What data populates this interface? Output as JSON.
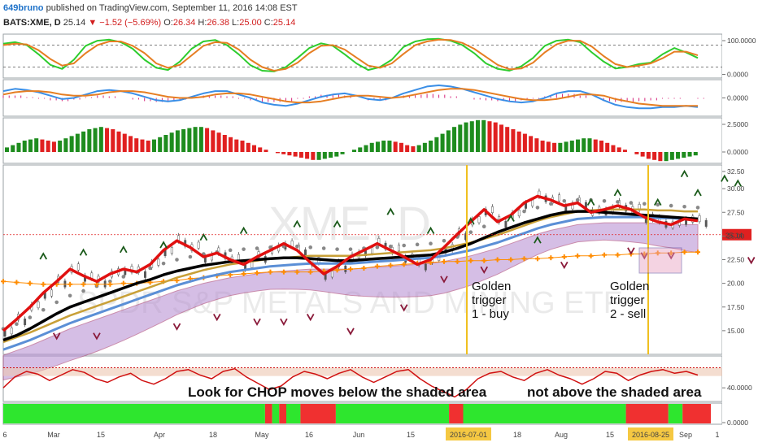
{
  "header": {
    "author": "649bruno",
    "published_text": "published on TradingView.com, September 11, 2016 14:08 EST",
    "symbol": "BATS:XME, D",
    "price": "25.14",
    "change": "−1.52 (−5.69%)",
    "open_label": "O:",
    "open": "26.34",
    "high_label": "H:",
    "high": "26.38",
    "low_label": "L:",
    "low": "25.00",
    "close_label": "C:",
    "close": "25.14"
  },
  "watermark": {
    "symbol": "XME, D",
    "name": "SPDR S&P METALS AND MINING ETF"
  },
  "chart_data": [
    {
      "type": "line",
      "pane": "stochastic",
      "yticks": [
        "100.0000",
        "0.0000"
      ],
      "ylim": [
        -10,
        110
      ],
      "guides": [
        80,
        20
      ],
      "series": [
        {
          "color": "#2ecc2e",
          "values": [
            84,
            88,
            80,
            55,
            26,
            15,
            40,
            78,
            92,
            95,
            88,
            70,
            40,
            18,
            12,
            35,
            70,
            90,
            94,
            80,
            55,
            25,
            10,
            8,
            20,
            45,
            72,
            85,
            78,
            55,
            30,
            12,
            20,
            40,
            75,
            90,
            96,
            97,
            92,
            80,
            58,
            30,
            15,
            10,
            22,
            45,
            78,
            92,
            95,
            88,
            60,
            35,
            16,
            20,
            28,
            32,
            55,
            72,
            60,
            45
          ]
        },
        {
          "color": "#e67e22",
          "values": [
            80,
            84,
            82,
            66,
            42,
            24,
            30,
            58,
            80,
            90,
            90,
            78,
            58,
            30,
            18,
            26,
            52,
            78,
            88,
            86,
            68,
            40,
            20,
            10,
            15,
            32,
            58,
            78,
            80,
            68,
            46,
            24,
            18,
            30,
            56,
            80,
            90,
            95,
            94,
            86,
            70,
            48,
            26,
            14,
            16,
            32,
            60,
            82,
            92,
            92,
            76,
            50,
            28,
            20,
            24,
            30,
            44,
            62,
            62,
            52
          ]
        }
      ]
    },
    {
      "type": "line",
      "pane": "macd",
      "yticks": [
        "0.0000"
      ],
      "ylim": [
        -1.6,
        1.6
      ],
      "series": [
        {
          "color": "#3a8ee6",
          "values": [
            0.6,
            0.8,
            0.7,
            0.5,
            0.2,
            -0.1,
            0.0,
            0.3,
            0.6,
            0.7,
            0.6,
            0.4,
            0.1,
            -0.2,
            -0.3,
            -0.2,
            0.1,
            0.4,
            0.6,
            0.6,
            0.3,
            0.0,
            -0.4,
            -0.6,
            -0.7,
            -0.5,
            -0.2,
            0.1,
            0.3,
            0.4,
            0.2,
            -0.1,
            -0.2,
            0.0,
            0.4,
            0.7,
            1.0,
            1.1,
            1.0,
            0.8,
            0.5,
            0.2,
            -0.1,
            -0.3,
            -0.4,
            -0.3,
            0.0,
            0.4,
            0.6,
            0.6,
            0.3,
            -0.2,
            -0.6,
            -0.8,
            -0.9,
            -0.9,
            -0.8,
            -0.8,
            -0.7,
            -0.8
          ]
        },
        {
          "color": "#e67e22",
          "values": [
            0.3,
            0.5,
            0.6,
            0.6,
            0.5,
            0.3,
            0.2,
            0.2,
            0.3,
            0.5,
            0.6,
            0.6,
            0.5,
            0.3,
            0.1,
            0.0,
            0.0,
            0.1,
            0.3,
            0.4,
            0.4,
            0.3,
            0.1,
            -0.1,
            -0.3,
            -0.4,
            -0.4,
            -0.3,
            -0.1,
            0.1,
            0.2,
            0.2,
            0.1,
            0.0,
            0.1,
            0.3,
            0.5,
            0.7,
            0.8,
            0.8,
            0.7,
            0.5,
            0.3,
            0.1,
            -0.1,
            -0.2,
            -0.2,
            -0.1,
            0.1,
            0.3,
            0.3,
            0.2,
            -0.1,
            -0.3,
            -0.5,
            -0.6,
            -0.7,
            -0.7,
            -0.7,
            -0.7
          ]
        }
      ]
    },
    {
      "type": "bar",
      "pane": "momentum-histogram",
      "yticks": [
        "2.5000",
        "0.0000"
      ],
      "ylim": [
        -1.0,
        3.0
      ],
      "colors": {
        "up": "#1e8c1e",
        "down": "#e02020"
      },
      "values": [
        0.4,
        0.6,
        0.8,
        1.0,
        1.1,
        1.2,
        1.1,
        1.0,
        0.9,
        1.0,
        1.2,
        1.4,
        1.6,
        1.8,
        2.0,
        2.1,
        2.2,
        2.1,
        2.0,
        1.8,
        1.6,
        1.4,
        1.2,
        1.1,
        1.0,
        1.1,
        1.3,
        1.5,
        1.7,
        1.9,
        2.0,
        2.1,
        2.2,
        2.2,
        2.1,
        1.9,
        1.7,
        1.5,
        1.3,
        1.1,
        1.0,
        0.8,
        0.6,
        0.4,
        0.2,
        0.0,
        -0.1,
        -0.2,
        -0.3,
        -0.4,
        -0.5,
        -0.6,
        -0.7,
        -0.7,
        -0.6,
        -0.5,
        -0.4,
        -0.2,
        0.0,
        0.2,
        0.4,
        0.6,
        0.8,
        0.9,
        1.0,
        1.0,
        0.9,
        0.8,
        0.6,
        0.5,
        0.6,
        0.8,
        1.0,
        1.3,
        1.6,
        1.9,
        2.2,
        2.4,
        2.6,
        2.7,
        2.8,
        2.8,
        2.7,
        2.6,
        2.4,
        2.2,
        2.0,
        1.8,
        1.6,
        1.4,
        1.2,
        1.0,
        0.9,
        0.8,
        0.8,
        0.9,
        1.0,
        1.1,
        1.2,
        1.2,
        1.1,
        1.0,
        0.8,
        0.6,
        0.4,
        0.2,
        0.0,
        -0.2,
        -0.4,
        -0.6,
        -0.7,
        -0.8,
        -0.8,
        -0.7,
        -0.6,
        -0.5,
        -0.4,
        -0.3
      ]
    },
    {
      "type": "line",
      "pane": "price",
      "yticks": [
        "32.50",
        "30.00",
        "27.50",
        "25.00",
        "22.50",
        "20.00",
        "17.50",
        "15.00"
      ],
      "ylim": [
        12.5,
        32.5
      ],
      "last_price": "25.14",
      "series": [
        {
          "name": "",
          "color": "#e01010",
          "values": [
            15.0,
            16.2,
            17.5,
            19.0,
            20.2,
            21.5,
            20.8,
            20.2,
            21.0,
            21.5,
            21.2,
            22.0,
            23.5,
            24.5,
            23.8,
            22.8,
            23.2,
            22.5,
            22.0,
            22.8,
            23.5,
            24.2,
            23.5,
            22.2,
            21.0,
            21.8,
            22.8,
            23.5,
            24.2,
            23.5,
            22.8,
            22.0,
            22.5,
            23.8,
            25.2,
            26.5,
            27.8,
            26.5,
            27.2,
            28.5,
            29.2,
            28.8,
            28.2,
            28.5,
            27.5,
            27.8,
            28.2,
            27.8,
            27.0,
            26.5,
            26.2,
            26.8,
            26.6
          ]
        },
        {
          "name": "",
          "color": "#000000",
          "values": [
            14.0,
            14.5,
            15.2,
            16.0,
            16.8,
            17.5,
            18.0,
            18.5,
            19.0,
            19.5,
            20.0,
            20.4,
            20.9,
            21.3,
            21.6,
            21.9,
            22.1,
            22.3,
            22.4,
            22.5,
            22.6,
            22.7,
            22.7,
            22.6,
            22.5,
            22.4,
            22.4,
            22.5,
            22.6,
            22.7,
            22.8,
            22.9,
            23.0,
            23.3,
            23.7,
            24.2,
            24.8,
            25.4,
            25.9,
            26.4,
            26.8,
            27.2,
            27.5,
            27.6,
            27.6,
            27.5,
            27.4,
            27.3,
            27.2,
            27.1,
            27.0,
            26.9,
            26.8
          ]
        },
        {
          "name": "",
          "color": "#5b8fd6",
          "values": [
            13.0,
            13.5,
            14.0,
            14.6,
            15.2,
            15.8,
            16.3,
            16.8,
            17.3,
            17.8,
            18.3,
            18.8,
            19.3,
            19.8,
            20.2,
            20.6,
            20.9,
            21.2,
            21.4,
            21.6,
            21.8,
            21.9,
            22.0,
            22.1,
            22.1,
            22.1,
            22.1,
            22.2,
            22.3,
            22.4,
            22.5,
            22.6,
            22.7,
            22.9,
            23.2,
            23.5,
            23.9,
            24.3,
            24.8,
            25.3,
            25.8,
            26.2,
            26.5,
            26.8,
            26.9,
            27.0,
            27.0,
            27.0,
            27.0,
            26.9,
            26.9,
            26.8,
            26.8
          ]
        },
        {
          "name": "",
          "color": "#ff8c00",
          "values": [
            20.2,
            20.1,
            20.0,
            19.9,
            19.9,
            19.9,
            19.9,
            19.9,
            19.9,
            20.0,
            20.0,
            20.1,
            20.2,
            20.3,
            20.5,
            20.6,
            20.8,
            20.9,
            21.0,
            21.1,
            21.2,
            21.2,
            21.2,
            21.2,
            21.3,
            21.4,
            21.5,
            21.6,
            21.8,
            21.9,
            22.0,
            22.1,
            22.2,
            22.3,
            22.3,
            22.4,
            22.4,
            22.5,
            22.5,
            22.6,
            22.6,
            22.7,
            22.8,
            22.9,
            22.9,
            23.0,
            23.0,
            23.1,
            23.1,
            23.2,
            23.2,
            23.3,
            23.3
          ]
        }
      ],
      "markers_up": [
        [
          3,
          22.8
        ],
        [
          6,
          23.2
        ],
        [
          9,
          23.5
        ],
        [
          12,
          24.0
        ],
        [
          15,
          24.8
        ],
        [
          18,
          25.5
        ],
        [
          22,
          26.2
        ],
        [
          25,
          26.2
        ],
        [
          29,
          27.5
        ],
        [
          32,
          25.5
        ],
        [
          35,
          26.5
        ],
        [
          38,
          26.8
        ],
        [
          40,
          24.5
        ],
        [
          44,
          28.5
        ],
        [
          46,
          29.5
        ],
        [
          49,
          28.5
        ],
        [
          51,
          31.5
        ],
        [
          52,
          29.5
        ],
        [
          54,
          31.0
        ],
        [
          55,
          30.5
        ],
        [
          57,
          30.0
        ],
        [
          59,
          29.5
        ]
      ],
      "markers_down": [
        [
          4,
          14.5
        ],
        [
          7,
          14.5
        ],
        [
          13,
          15.5
        ],
        [
          16,
          16.5
        ],
        [
          19,
          16.0
        ],
        [
          21,
          16.0
        ],
        [
          23,
          16.5
        ],
        [
          26,
          15.0
        ],
        [
          30,
          17.5
        ],
        [
          33,
          20.5
        ],
        [
          36,
          21.5
        ],
        [
          42,
          22.0
        ],
        [
          47,
          23.5
        ],
        [
          48,
          23.0
        ],
        [
          50,
          23.0
        ],
        [
          56,
          22.5
        ],
        [
          57,
          22.0
        ],
        [
          58,
          21.5
        ]
      ],
      "annotations": [
        {
          "lines": [
            "Golden",
            "trigger",
            "1 - buy"
          ]
        },
        {
          "lines": [
            "Golden",
            "trigger",
            "2 - sell"
          ]
        }
      ]
    },
    {
      "type": "line",
      "pane": "chop",
      "yticks": [
        "40.0000"
      ],
      "ylim": [
        25,
        75
      ],
      "band": [
        53,
        62
      ],
      "series": [
        {
          "color": "#d01010",
          "values": [
            40,
            52,
            58,
            55,
            48,
            54,
            60,
            57,
            50,
            46,
            52,
            56,
            48,
            44,
            50,
            58,
            60,
            54,
            50,
            58,
            61,
            52,
            45,
            38,
            42,
            52,
            58,
            55,
            50,
            56,
            60,
            52,
            46,
            52,
            58,
            60,
            50,
            42,
            36,
            30,
            38,
            50,
            56,
            58,
            52,
            48,
            56,
            60,
            54,
            50,
            44,
            50,
            58,
            56,
            48,
            54,
            58,
            60,
            56,
            58,
            54
          ]
        }
      ],
      "footer_text": "Look for CHOP moves below the shaded area",
      "footer_text2": "not above the shaded area"
    },
    {
      "type": "heatmap",
      "pane": "signal-strip",
      "yticks": [
        "0.0000"
      ],
      "colors": {
        "on": "#2ee62e",
        "off": "#f03030"
      },
      "segments": [
        {
          "from": 0,
          "to": 0.37,
          "state": "on"
        },
        {
          "from": 0.37,
          "to": 0.38,
          "state": "off"
        },
        {
          "from": 0.38,
          "to": 0.39,
          "state": "on"
        },
        {
          "from": 0.39,
          "to": 0.4,
          "state": "off"
        },
        {
          "from": 0.4,
          "to": 0.42,
          "state": "on"
        },
        {
          "from": 0.42,
          "to": 0.47,
          "state": "off"
        },
        {
          "from": 0.47,
          "to": 0.63,
          "state": "on"
        },
        {
          "from": 0.63,
          "to": 0.65,
          "state": "off"
        },
        {
          "from": 0.65,
          "to": 0.88,
          "state": "on"
        },
        {
          "from": 0.88,
          "to": 0.94,
          "state": "off"
        },
        {
          "from": 0.94,
          "to": 0.96,
          "state": "on"
        },
        {
          "from": 0.96,
          "to": 1.0,
          "state": "off"
        }
      ]
    }
  ],
  "x_axis": {
    "labels": [
      "6",
      "Mar",
      "15",
      "Apr",
      "18",
      "May",
      "16",
      "Jun",
      "15",
      "2016-07-01",
      "18",
      "Aug",
      "15",
      "2016-08-25",
      "Sep",
      "1"
    ],
    "highlighted": [
      "2016-07-01",
      "2016-08-25"
    ]
  }
}
